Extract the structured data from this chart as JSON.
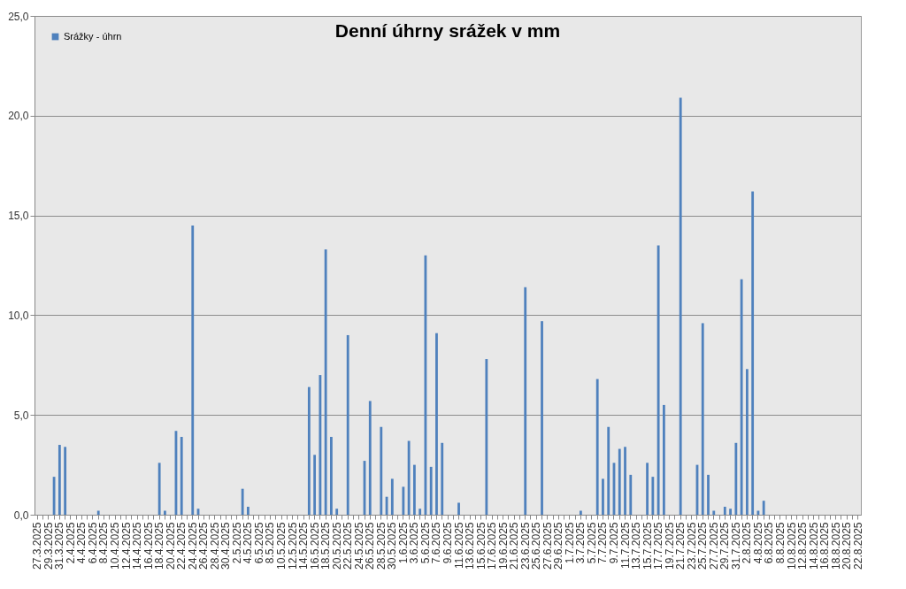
{
  "chart_data": {
    "type": "bar",
    "title": "Denní úhrny srážek v mm",
    "categories": [
      "27.3.2025",
      null,
      "29.3.2025",
      null,
      "31.3.2025",
      null,
      "2.4.2025",
      null,
      "4.4.2025",
      null,
      "6.4.2025",
      null,
      "8.4.2025",
      null,
      "10.4.2025",
      null,
      "12.4.2025",
      null,
      "14.4.2025",
      null,
      "16.4.2025",
      null,
      "18.4.2025",
      null,
      "20.4.2025",
      null,
      "22.4.2025",
      null,
      "24.4.2025",
      null,
      "26.4.2025",
      null,
      "28.4.2025",
      null,
      "30.4.2025",
      null,
      "2.5.2025",
      null,
      "4.5.2025",
      null,
      "6.5.2025",
      null,
      "8.5.2025",
      null,
      "10.5.2025",
      null,
      "12.5.2025",
      null,
      "14.5.2025",
      null,
      "16.5.2025",
      null,
      "18.5.2025",
      null,
      "20.5.2025",
      null,
      "22.5.2025",
      null,
      "24.5.2025",
      null,
      "26.5.2025",
      null,
      "28.5.2025",
      null,
      "30.5.2025",
      null,
      "1.6.2025",
      null,
      "3.6.2025",
      null,
      "5.6.2025",
      null,
      "7.6.2025",
      null,
      "9.6.2025",
      null,
      "11.6.2025",
      null,
      "13.6.2025",
      null,
      "15.6.2025",
      null,
      "17.6.2025",
      null,
      "19.6.2025",
      null,
      "21.6.2025",
      null,
      "23.6.2025",
      null,
      "25.6.2025",
      null,
      "27.6.2025",
      null,
      "29.6.2025",
      null,
      "1.7.2025",
      null,
      "3.7.2025",
      null,
      "5.7.2025",
      null,
      "7.7.2025",
      null,
      "9.7.2025",
      null,
      "11.7.2025",
      null,
      "13.7.2025",
      null,
      "15.7.2025",
      null,
      "17.7.2025",
      null,
      "19.7.2025",
      null,
      "21.7.2025",
      null,
      "23.7.2025",
      null,
      "25.7.2025",
      null,
      "27.7.2025",
      null,
      "29.7.2025",
      null,
      "31.7.2025",
      null,
      "2.8.2025",
      null,
      "4.8.2025",
      null,
      "6.8.2025",
      null,
      "8.8.2025",
      null,
      "10.8.2025",
      null,
      "12.8.2025",
      null,
      "14.8.2025",
      null,
      "16.8.2025",
      null,
      "18.8.2025",
      null,
      "20.8.2025",
      null,
      "22.8.2025"
    ],
    "series": [
      {
        "name": "Srážky - úhrn",
        "color": "#4f81bd",
        "values": [
          0,
          0,
          0,
          1.9,
          3.5,
          3.4,
          0,
          0,
          0,
          0,
          0,
          0.2,
          0,
          0,
          0,
          0,
          0,
          0,
          0,
          0,
          0,
          0,
          2.6,
          0.2,
          0,
          4.2,
          3.9,
          0,
          14.5,
          0.3,
          0,
          0,
          0,
          0,
          0,
          0,
          0,
          1.3,
          0.4,
          0,
          0,
          0,
          0,
          0,
          0,
          0,
          0,
          0,
          0,
          6.4,
          3.0,
          7.0,
          13.3,
          3.9,
          0.3,
          0,
          9.0,
          0,
          0,
          2.7,
          5.7,
          0,
          4.4,
          0.9,
          1.8,
          0,
          1.4,
          3.7,
          2.5,
          0.3,
          13.0,
          2.4,
          9.1,
          3.6,
          0,
          0,
          0.6,
          0,
          0,
          0,
          0,
          7.8,
          0,
          0,
          0,
          0,
          0,
          0,
          11.4,
          0,
          0,
          9.7,
          0,
          0,
          0,
          0,
          0,
          0,
          0.2,
          0,
          0,
          6.8,
          1.8,
          4.4,
          2.6,
          3.3,
          3.4,
          2.0,
          0,
          0,
          2.6,
          1.9,
          13.5,
          5.5,
          0,
          0,
          20.9,
          0,
          0,
          2.5,
          9.6,
          2.0,
          0.2,
          0,
          0.4,
          0.3,
          3.6,
          11.8,
          7.3,
          16.2,
          0.2,
          0.7,
          0,
          0,
          0,
          0,
          0,
          0,
          0,
          0,
          0,
          0,
          0,
          0,
          0,
          0,
          0,
          0,
          0
        ]
      }
    ],
    "ylim": [
      0,
      25
    ],
    "yticks": [
      {
        "value": 0,
        "label": "0,0"
      },
      {
        "value": 5,
        "label": "5,0"
      },
      {
        "value": 10,
        "label": "10,0"
      },
      {
        "value": 15,
        "label": "15,0"
      },
      {
        "value": 20,
        "label": "20,0"
      },
      {
        "value": 25,
        "label": "25,0"
      }
    ],
    "grid": "y",
    "legend": "top left"
  }
}
